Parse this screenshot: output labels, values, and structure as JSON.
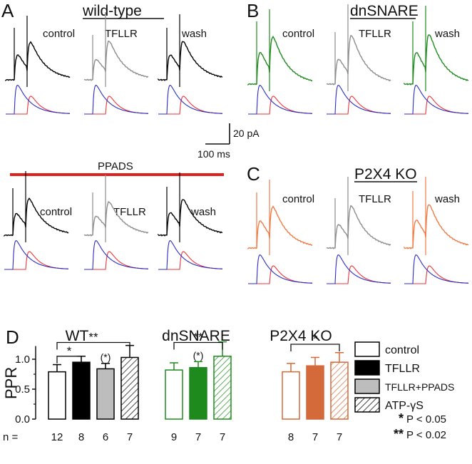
{
  "panels": {
    "A": {
      "letter": "A",
      "title": "wild-type",
      "conditions": [
        "control",
        "TFLLR",
        "wash"
      ]
    },
    "A2": {
      "bar_label": "PPADS",
      "conditions": [
        "control",
        "TFLLR",
        "wash"
      ]
    },
    "B": {
      "letter": "B",
      "title": "dnSNARE",
      "conditions": [
        "control",
        "TFLLR",
        "wash"
      ]
    },
    "C": {
      "letter": "C",
      "title": "P2X4 KO",
      "conditions": [
        "control",
        "TFLLR",
        "wash"
      ]
    },
    "D": {
      "letter": "D"
    }
  },
  "scalebar": {
    "y_label": "20 pA",
    "x_label": "100 ms"
  },
  "colors": {
    "black": "#000000",
    "gray": "#8c8c8c",
    "green": "#1e8a1e",
    "orange": "#f07a45",
    "blue": "#2b2bc8",
    "red": "#e8343a",
    "ppads": "#e0201c",
    "ko_orange": "#d4693a"
  },
  "chart_data": {
    "type": "bar",
    "ylabel": "PPR",
    "ylim": [
      0,
      1.25
    ],
    "yticks": [
      "0.0",
      "0.5",
      "1.0"
    ],
    "yticks_values": [
      0,
      0.5,
      1.0
    ],
    "n_prefix": "n =",
    "groups": [
      {
        "name": "WT",
        "bars": [
          {
            "cond": "control",
            "value": 0.79,
            "err": 0.12,
            "n": "12",
            "mark": ""
          },
          {
            "cond": "TFLLR",
            "value": 0.95,
            "err": 0.1,
            "n": "8",
            "mark": ""
          },
          {
            "cond": "TFLLR+PPADS",
            "value": 0.84,
            "err": 0.09,
            "n": "6",
            "mark": "(*)"
          },
          {
            "cond": "ATP-γS",
            "value": 1.03,
            "err": 0.2,
            "n": "7",
            "mark": ""
          }
        ],
        "brackets": [
          {
            "from": 0,
            "to": 1,
            "label": "*",
            "level": 1.05
          },
          {
            "from": 0,
            "to": 3,
            "label": "**",
            "level": 1.28
          }
        ]
      },
      {
        "name": "dnSNARE",
        "bars": [
          {
            "cond": "control",
            "value": 0.82,
            "err": 0.12,
            "n": "9",
            "mark": ""
          },
          {
            "cond": "TFLLR",
            "value": 0.86,
            "err": 0.1,
            "n": "7",
            "mark": "(*)"
          },
          {
            "cond": "ATP-γS",
            "value": 1.05,
            "err": 0.24,
            "n": "7",
            "mark": ""
          }
        ],
        "brackets": [
          {
            "from": 0,
            "to": 2,
            "label": "**",
            "level": 1.28
          }
        ]
      },
      {
        "name": "P2X4 KO",
        "bars": [
          {
            "cond": "control",
            "value": 0.79,
            "err": 0.14,
            "n": "8",
            "mark": ""
          },
          {
            "cond": "TFLLR",
            "value": 0.89,
            "err": 0.14,
            "n": "7",
            "mark": ""
          },
          {
            "cond": "ATP-γS",
            "value": 0.95,
            "err": 0.16,
            "n": "7",
            "mark": ""
          }
        ],
        "brackets": [
          {
            "from": 0,
            "to": 2,
            "label": "*",
            "level": 1.25
          }
        ]
      }
    ],
    "legend": [
      {
        "key": "control",
        "label": "control"
      },
      {
        "key": "TFLLR",
        "label": "TFLLR"
      },
      {
        "key": "TFLLR+PPADS",
        "label": "TFLLR+PPADS"
      },
      {
        "key": "ATP-γS",
        "label": "ATP-γS"
      }
    ],
    "significance": [
      {
        "stars": "*",
        "text": "P < 0.05"
      },
      {
        "stars": "**",
        "text": "P < 0.02"
      }
    ]
  }
}
